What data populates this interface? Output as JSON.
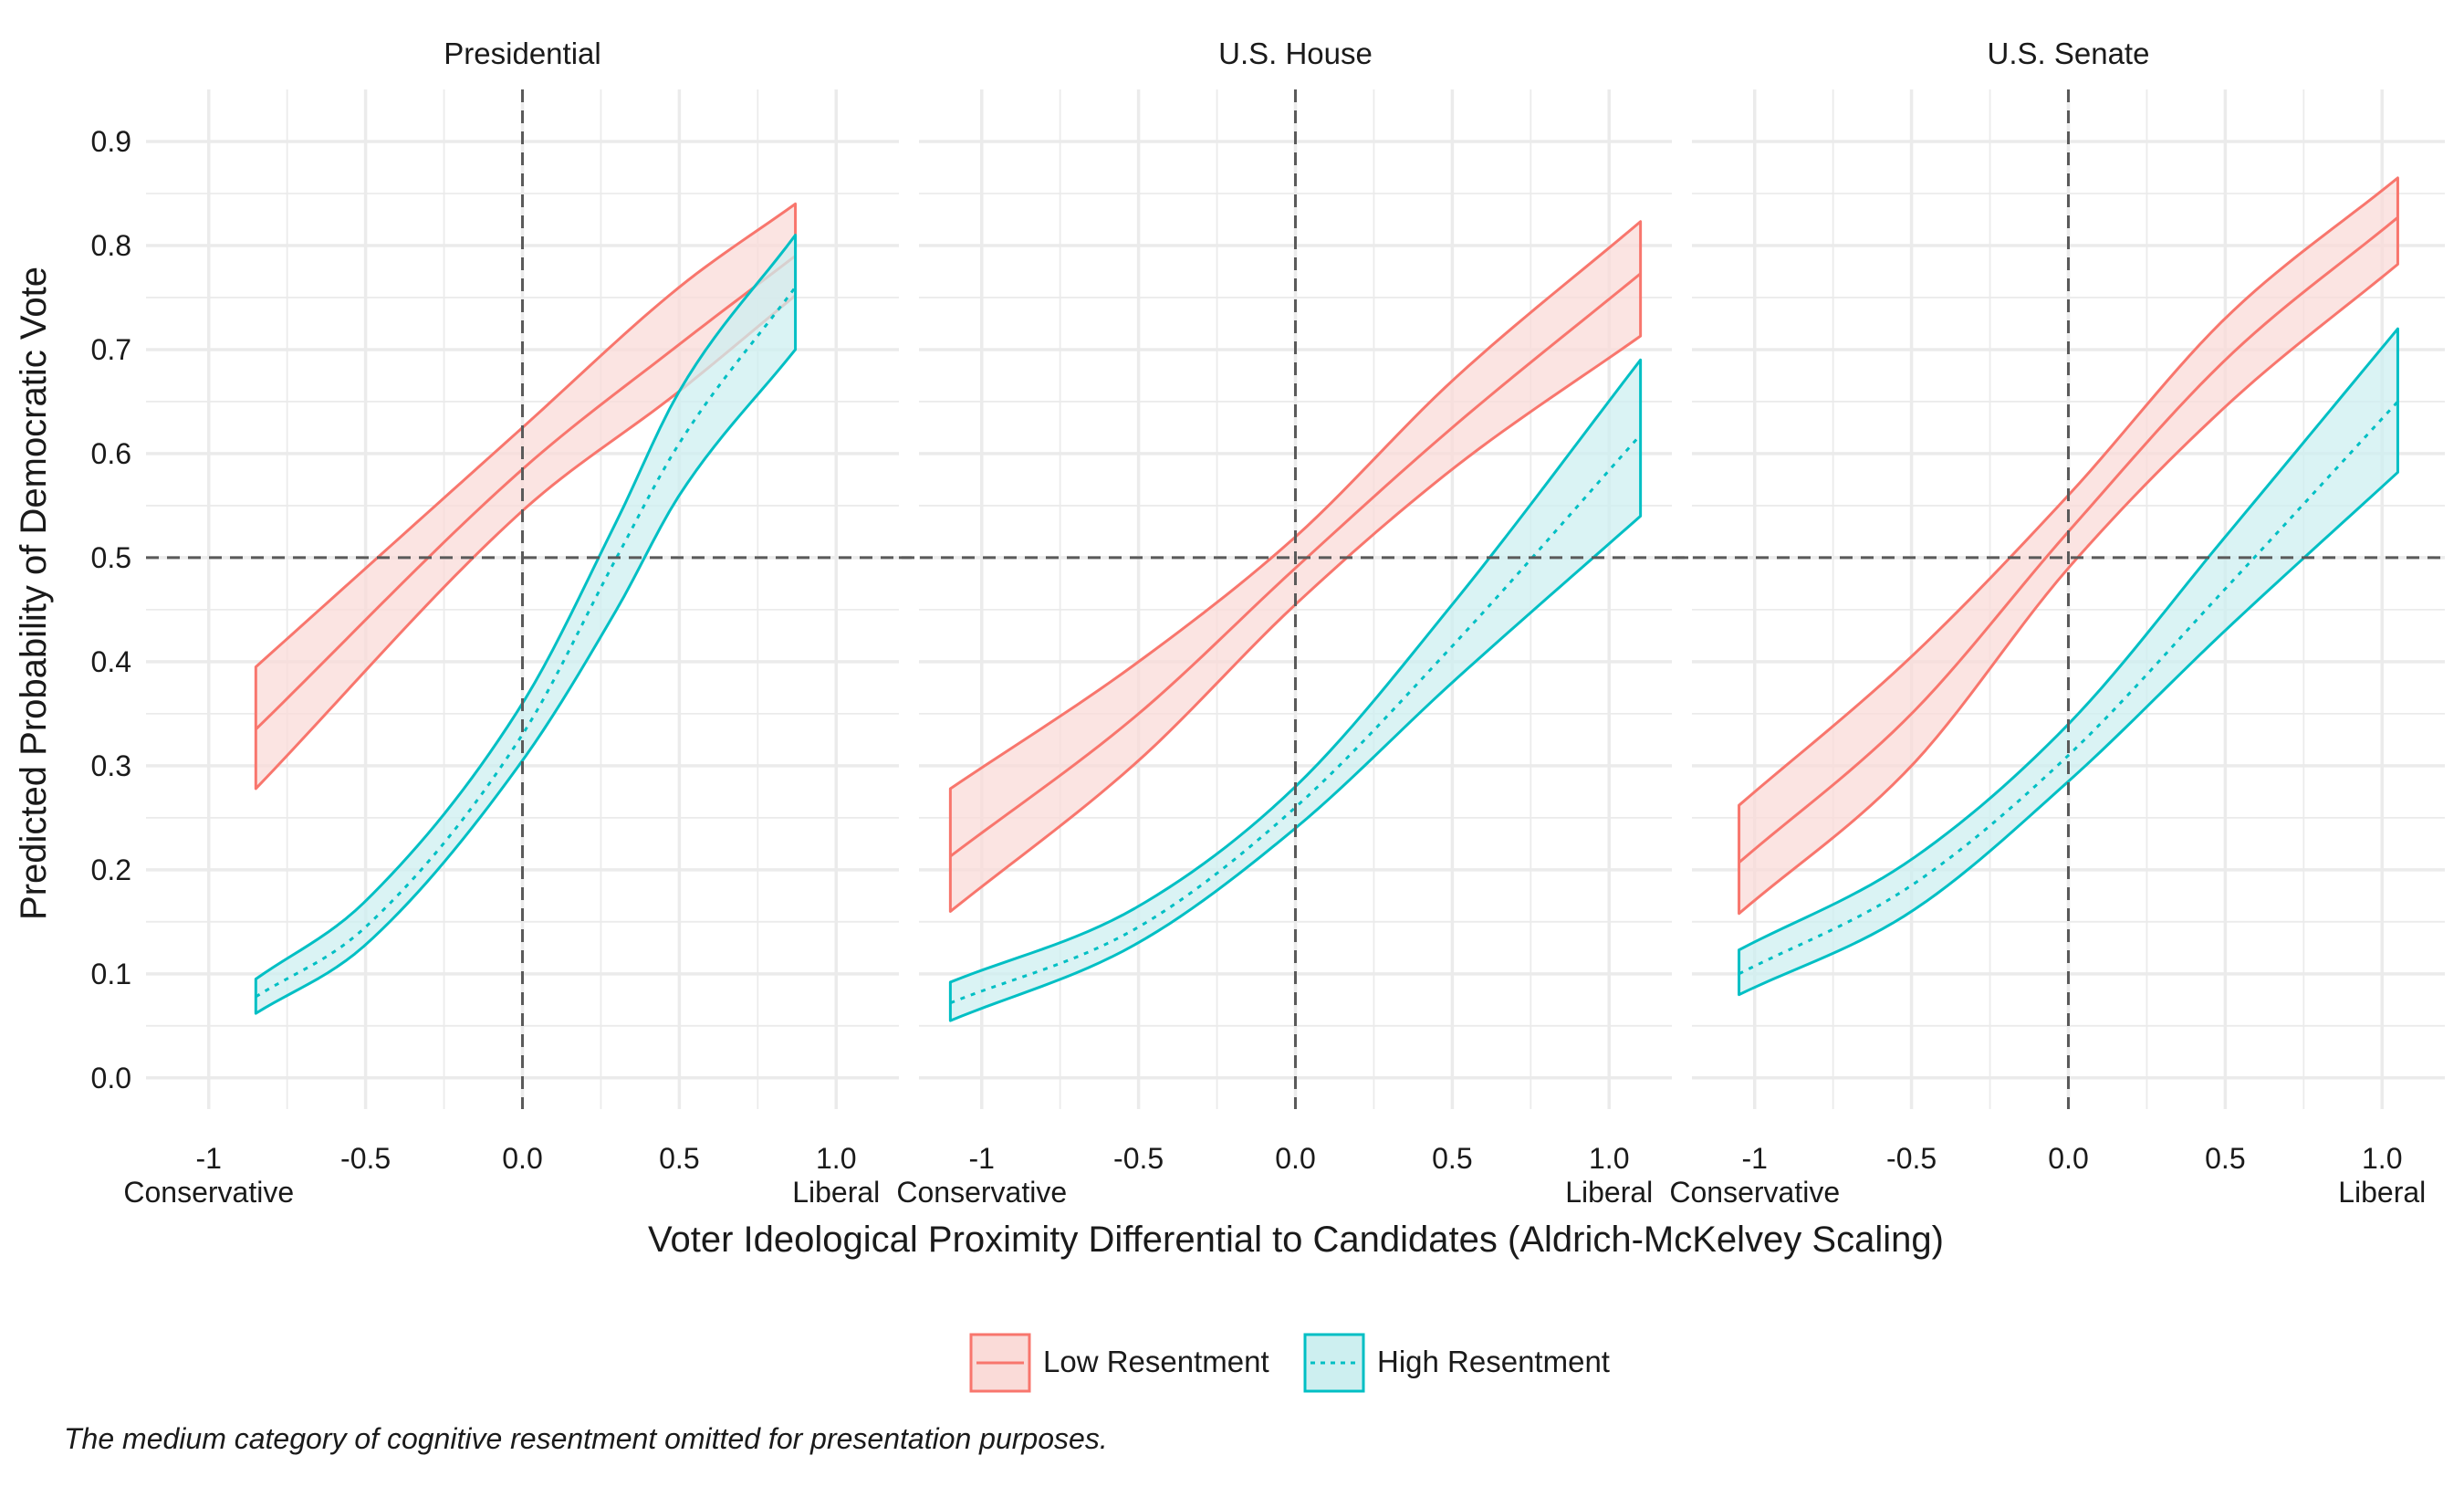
{
  "chart_data": {
    "type": "line",
    "ylabel": "Predicted Probability of Democratic Vote",
    "xlabel": "Voter Ideological Proximity Differential to Candidates (Aldrich-McKelvey Scaling)",
    "y_ticks": [
      "0.0",
      "0.1",
      "0.2",
      "0.3",
      "0.4",
      "0.5",
      "0.6",
      "0.7",
      "0.8",
      "0.9"
    ],
    "ylim": [
      -0.03,
      0.95
    ],
    "x_ticks": [
      "-1",
      "-0.5",
      "0.0",
      "0.5",
      "1.0"
    ],
    "x_end_labels": {
      "left": "Conservative",
      "right": "Liberal"
    },
    "reference_lines": {
      "x": 0,
      "y": 0.5,
      "style": "dashed"
    },
    "grid": true,
    "legend": {
      "position": "bottom",
      "entries": [
        {
          "name": "Low Resentment",
          "color": "#F8766D",
          "fill": "#FADBD8",
          "line": "solid"
        },
        {
          "name": "High Resentment",
          "color": "#00BFC4",
          "fill": "#CDEFF0",
          "line": "dotted"
        }
      ]
    },
    "caption": "The medium category of cognitive resentment omitted for presentation purposes.",
    "panels": [
      {
        "title": "Presidential",
        "xlim": [
          -1.2,
          1.2
        ],
        "series": [
          {
            "name": "Low Resentment",
            "x": [
              -0.85,
              0.0,
              0.5,
              0.87
            ],
            "mid": [
              0.335,
              0.585,
              0.705,
              0.79
            ],
            "lower": [
              0.278,
              0.545,
              0.66,
              0.752
            ],
            "upper": [
              0.395,
              0.625,
              0.76,
              0.84
            ]
          },
          {
            "name": "High Resentment",
            "x": [
              -0.85,
              -0.5,
              0.0,
              0.3,
              0.5,
              0.87
            ],
            "mid": [
              0.078,
              0.145,
              0.33,
              0.5,
              0.61,
              0.76
            ],
            "lower": [
              0.062,
              0.128,
              0.305,
              0.45,
              0.56,
              0.7
            ],
            "upper": [
              0.095,
              0.17,
              0.36,
              0.535,
              0.66,
              0.81
            ]
          }
        ]
      },
      {
        "title": "U.S. House",
        "xlim": [
          -1.2,
          1.2
        ],
        "series": [
          {
            "name": "Low Resentment",
            "x": [
              -1.1,
              -0.5,
              0.0,
              0.5,
              1.1
            ],
            "mid": [
              0.213,
              0.35,
              0.49,
              0.625,
              0.773
            ],
            "lower": [
              0.16,
              0.305,
              0.455,
              0.585,
              0.713
            ],
            "upper": [
              0.278,
              0.4,
              0.52,
              0.67,
              0.823
            ]
          },
          {
            "name": "High Resentment",
            "x": [
              -1.1,
              -0.5,
              0.0,
              0.5,
              1.1
            ],
            "mid": [
              0.072,
              0.145,
              0.26,
              0.415,
              0.618
            ],
            "lower": [
              0.055,
              0.13,
              0.24,
              0.38,
              0.54
            ],
            "upper": [
              0.092,
              0.165,
              0.28,
              0.455,
              0.69
            ]
          }
        ]
      },
      {
        "title": "U.S. Senate",
        "xlim": [
          -1.2,
          1.2
        ],
        "series": [
          {
            "name": "Low Resentment",
            "x": [
              -1.05,
              -0.5,
              0.0,
              0.5,
              1.05
            ],
            "mid": [
              0.207,
              0.35,
              0.525,
              0.69,
              0.827
            ],
            "lower": [
              0.158,
              0.3,
              0.49,
              0.645,
              0.782
            ],
            "upper": [
              0.262,
              0.405,
              0.56,
              0.73,
              0.865
            ]
          },
          {
            "name": "High Resentment",
            "x": [
              -1.05,
              -0.5,
              0.0,
              0.5,
              1.05
            ],
            "mid": [
              0.1,
              0.185,
              0.31,
              0.47,
              0.65
            ],
            "lower": [
              0.08,
              0.16,
              0.285,
              0.43,
              0.582
            ],
            "upper": [
              0.123,
              0.21,
              0.34,
              0.52,
              0.72
            ]
          }
        ]
      }
    ]
  }
}
